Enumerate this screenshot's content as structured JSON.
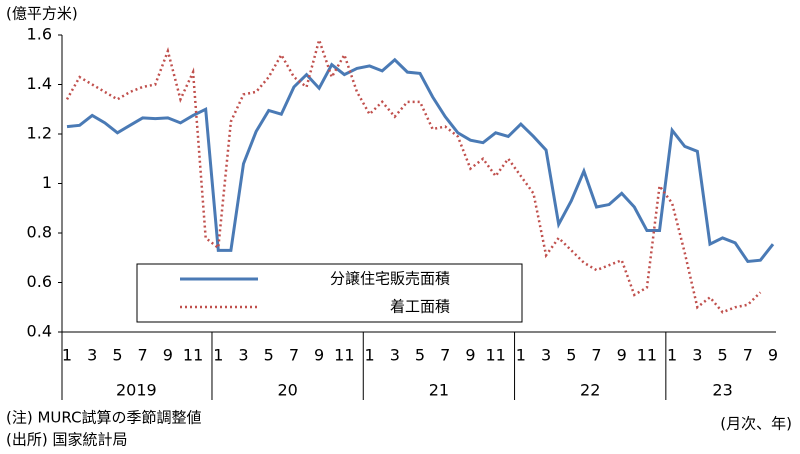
{
  "chart_data": {
    "type": "line",
    "y_unit": "(億平方米)",
    "x_unit": "(月次、年)",
    "notes": [
      "(注) MURC試算の季節調整値",
      "(出所) 国家統計局"
    ],
    "categories": [
      "1",
      null,
      "3",
      null,
      "5",
      null,
      "7",
      null,
      "9",
      null,
      "11",
      null,
      "1",
      null,
      "3",
      null,
      "5",
      null,
      "7",
      null,
      "9",
      null,
      "11",
      null,
      "1",
      null,
      "3",
      null,
      "5",
      null,
      "7",
      null,
      "9",
      null,
      "11",
      null,
      "1",
      null,
      "3",
      null,
      "5",
      null,
      "7",
      null,
      "9",
      null,
      "11",
      null,
      "1",
      null,
      "3",
      null,
      "5",
      null,
      "7",
      null,
      "9"
    ],
    "x_groups": [
      "2019",
      "20",
      "21",
      "22",
      "23"
    ],
    "series": [
      {
        "name": "分譲住宅販売面積",
        "color": "#4a7ab5",
        "style": "solid",
        "values": [
          1.23,
          1.235,
          1.275,
          1.245,
          1.205,
          1.235,
          1.265,
          1.262,
          1.265,
          1.245,
          1.275,
          1.3,
          0.73,
          0.73,
          1.08,
          1.21,
          1.295,
          1.28,
          1.39,
          1.44,
          1.385,
          1.48,
          1.44,
          1.465,
          1.475,
          1.455,
          1.5,
          1.45,
          1.445,
          1.35,
          1.27,
          1.205,
          1.175,
          1.165,
          1.205,
          1.19,
          1.24,
          1.19,
          1.135,
          0.835,
          0.93,
          1.05,
          0.905,
          0.915,
          0.96,
          0.905,
          0.81,
          0.81,
          1.215,
          1.15,
          1.13,
          0.755,
          0.78,
          0.76,
          0.685,
          0.69,
          0.755
        ]
      },
      {
        "name": "着工面積",
        "color": "#c0504d",
        "style": "dotted",
        "values": [
          1.34,
          1.43,
          1.4,
          1.37,
          1.34,
          1.37,
          1.39,
          1.4,
          1.535,
          1.34,
          1.45,
          0.78,
          0.74,
          1.25,
          1.36,
          1.37,
          1.43,
          1.52,
          1.43,
          1.39,
          1.58,
          1.43,
          1.52,
          1.37,
          1.28,
          1.33,
          1.27,
          1.33,
          1.33,
          1.22,
          1.23,
          1.19,
          1.06,
          1.1,
          1.03,
          1.1,
          1.03,
          0.96,
          0.71,
          0.78,
          0.73,
          0.68,
          0.65,
          0.67,
          0.69,
          0.55,
          0.58,
          0.99,
          0.92,
          0.72,
          0.5,
          0.54,
          0.48,
          0.5,
          0.51,
          0.56,
          null
        ]
      }
    ],
    "ylim": [
      0.4,
      1.6
    ],
    "yticks": [
      0.4,
      0.6,
      0.8,
      1,
      1.2,
      1.4,
      1.6
    ],
    "grid": false
  }
}
